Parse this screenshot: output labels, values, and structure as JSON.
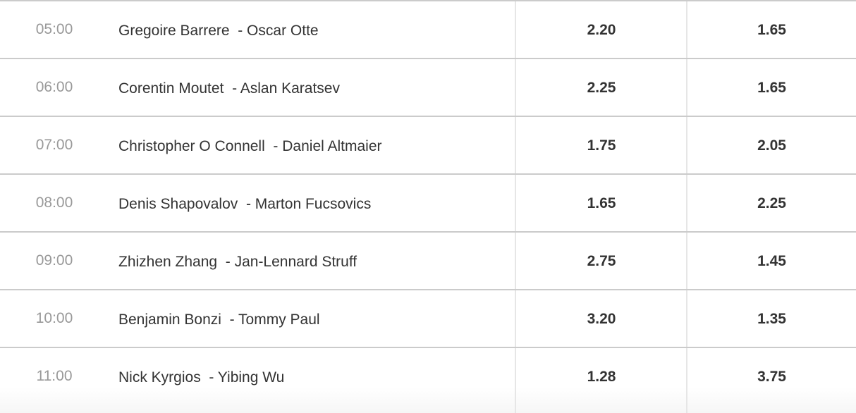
{
  "matches": [
    {
      "time": "05:00",
      "match": "Gregoire Barrere  - Oscar Otte",
      "odd1": "2.20",
      "odd2": "1.65"
    },
    {
      "time": "06:00",
      "match": "Corentin Moutet  - Aslan Karatsev",
      "odd1": "2.25",
      "odd2": "1.65"
    },
    {
      "time": "07:00",
      "match": "Christopher O Connell  - Daniel Altmaier",
      "odd1": "1.75",
      "odd2": "2.05"
    },
    {
      "time": "08:00",
      "match": "Denis Shapovalov  - Marton Fucsovics",
      "odd1": "1.65",
      "odd2": "2.25"
    },
    {
      "time": "09:00",
      "match": "Zhizhen Zhang  - Jan-Lennard Struff",
      "odd1": "2.75",
      "odd2": "1.45"
    },
    {
      "time": "10:00",
      "match": "Benjamin Bonzi  - Tommy Paul",
      "odd1": "3.20",
      "odd2": "1.35"
    },
    {
      "time": "11:00",
      "match": "Nick Kyrgios  - Yibing Wu",
      "odd1": "1.28",
      "odd2": "3.75"
    }
  ]
}
